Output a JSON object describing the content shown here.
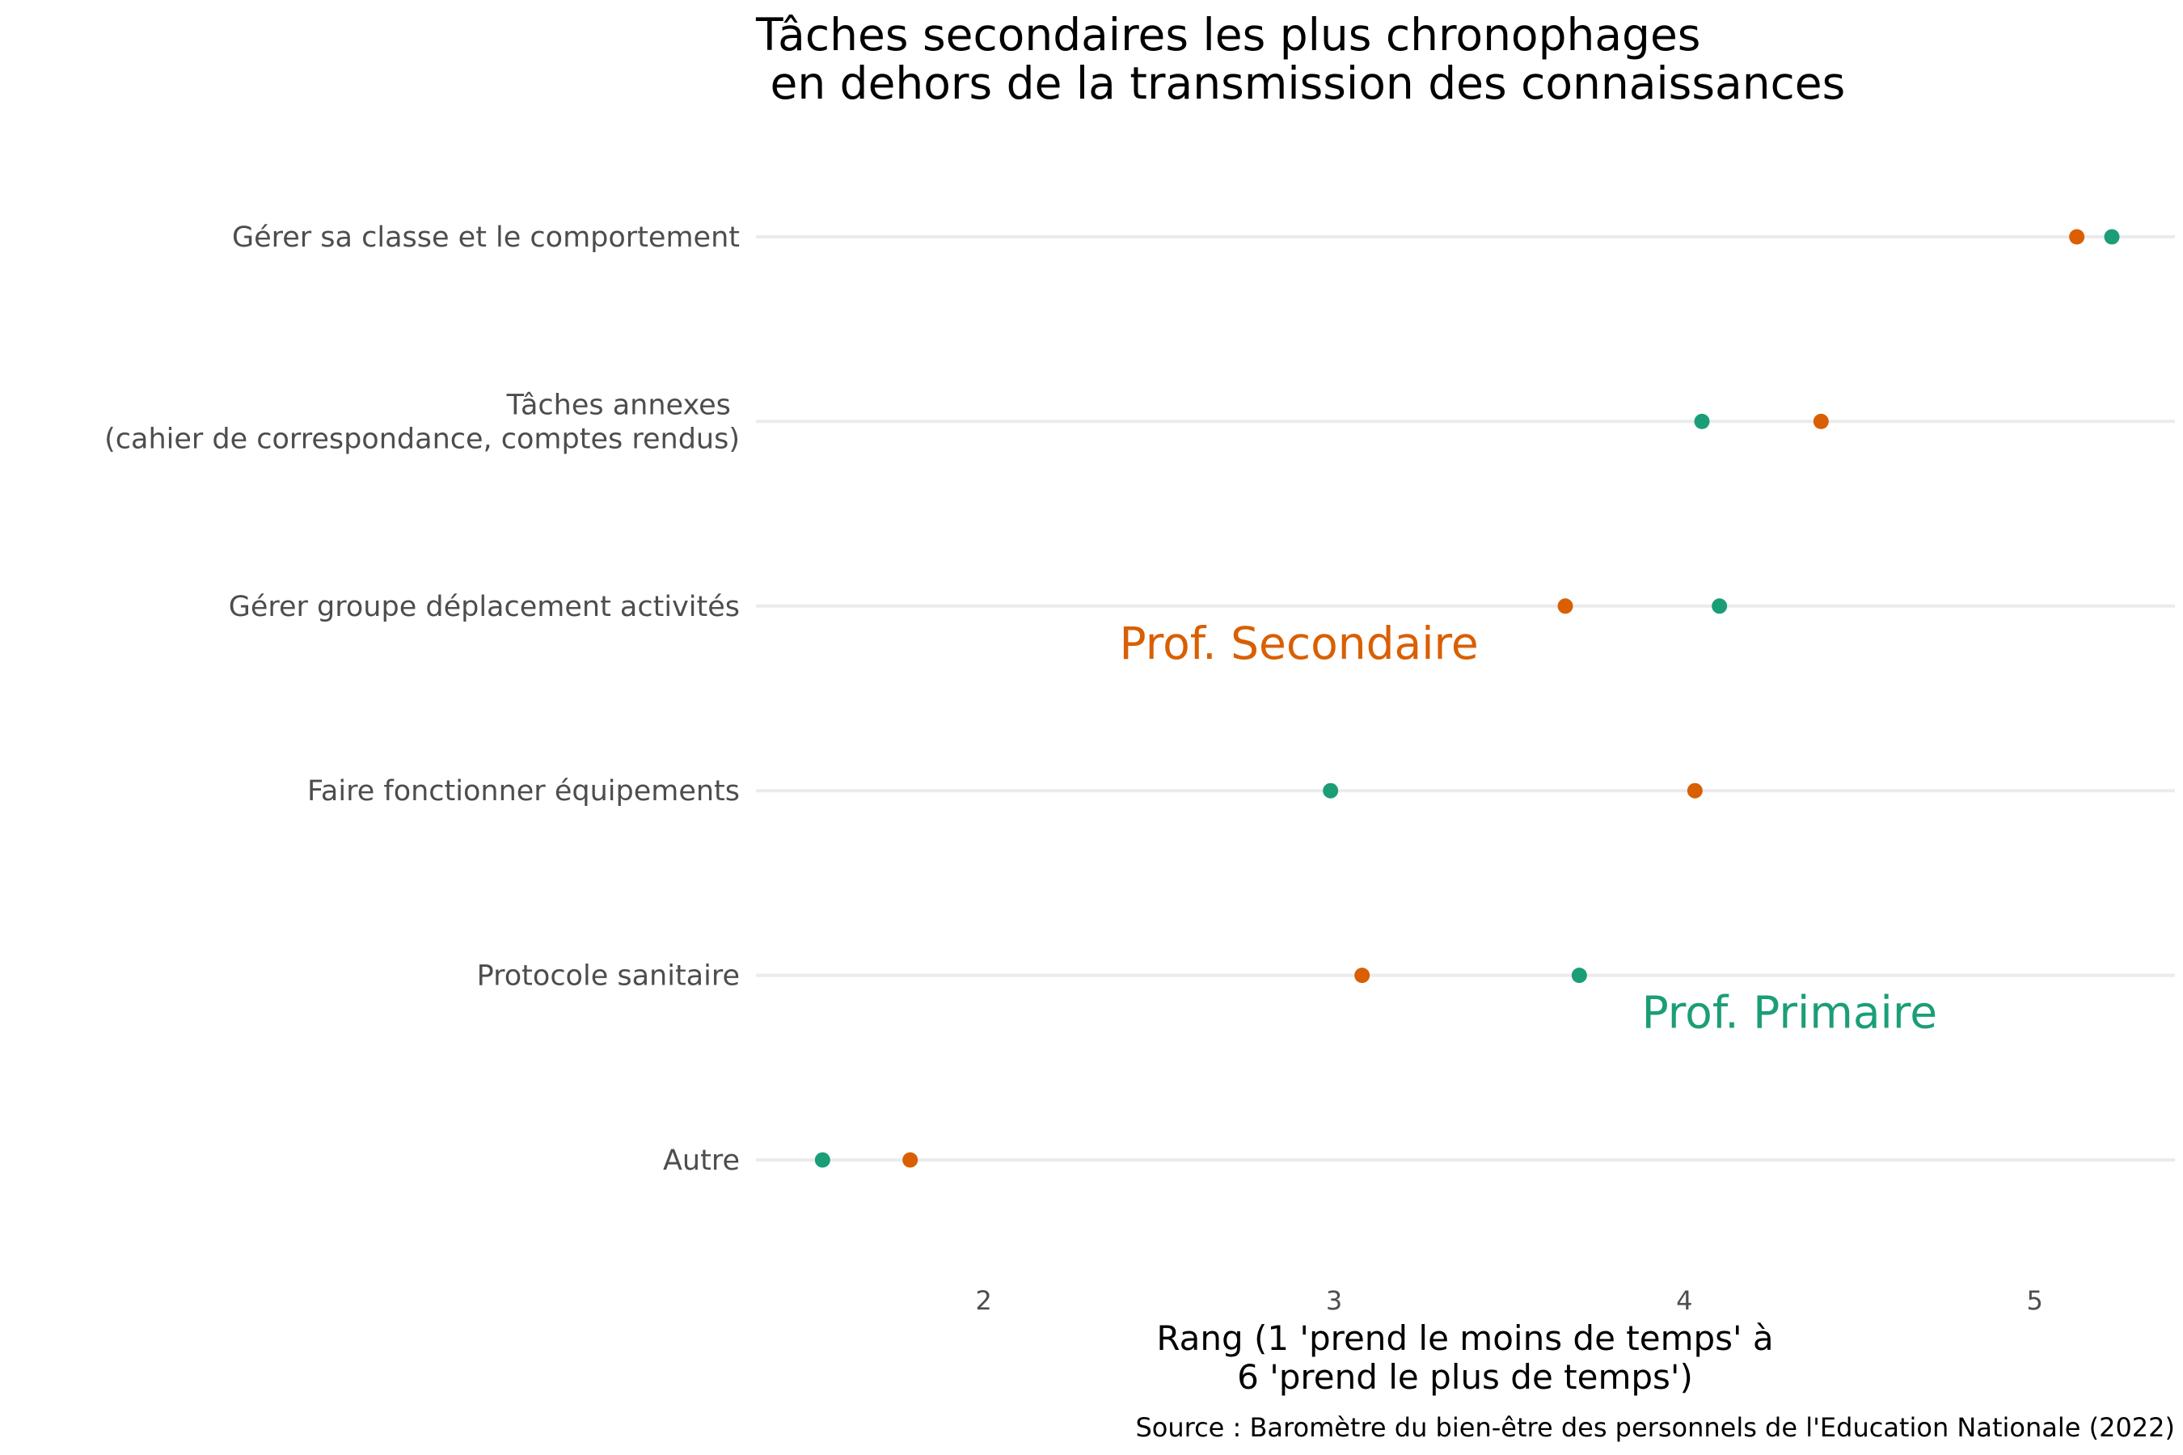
{
  "chart_data": {
    "type": "scatter",
    "title": "Tâches secondaires les plus chronophages\n en dehors de la transmission des connaissances",
    "xlabel": "Rang (1 'prend le moins de temps' à\n6 'prend le plus de temps')",
    "caption": "Source : Baromètre du bien-être des personnels de l'Education Nationale (2022)",
    "categories": [
      "Gérer sa classe et le comportement",
      "Tâches annexes \n(cahier de correspondance, comptes rendus)",
      "Gérer groupe déplacement activités",
      "Faire fonctionner équipements",
      "Protocole sanitaire",
      "Autre"
    ],
    "xlim": [
      1.35,
      5.4
    ],
    "xticks": [
      2,
      3,
      4,
      5
    ],
    "grid": "horizontal only",
    "legend": "none (direct labels on plot)",
    "series": [
      {
        "name": "Prof. Secondaire",
        "color": "#d95f02",
        "values": [
          5.12,
          4.39,
          3.66,
          4.03,
          3.08,
          1.79
        ]
      },
      {
        "name": "Prof. Primaire",
        "color": "#1b9e77",
        "values": [
          5.22,
          4.05,
          4.1,
          2.99,
          3.7,
          1.54
        ]
      }
    ],
    "annotations": [
      {
        "text": "Prof. Secondaire",
        "x": 2.9,
        "category_index": 2,
        "offset": "below",
        "color": "#d95f02"
      },
      {
        "text": "Prof. Primaire",
        "x": 4.3,
        "category_index": 4,
        "offset": "below",
        "color": "#1b9e77"
      }
    ]
  }
}
